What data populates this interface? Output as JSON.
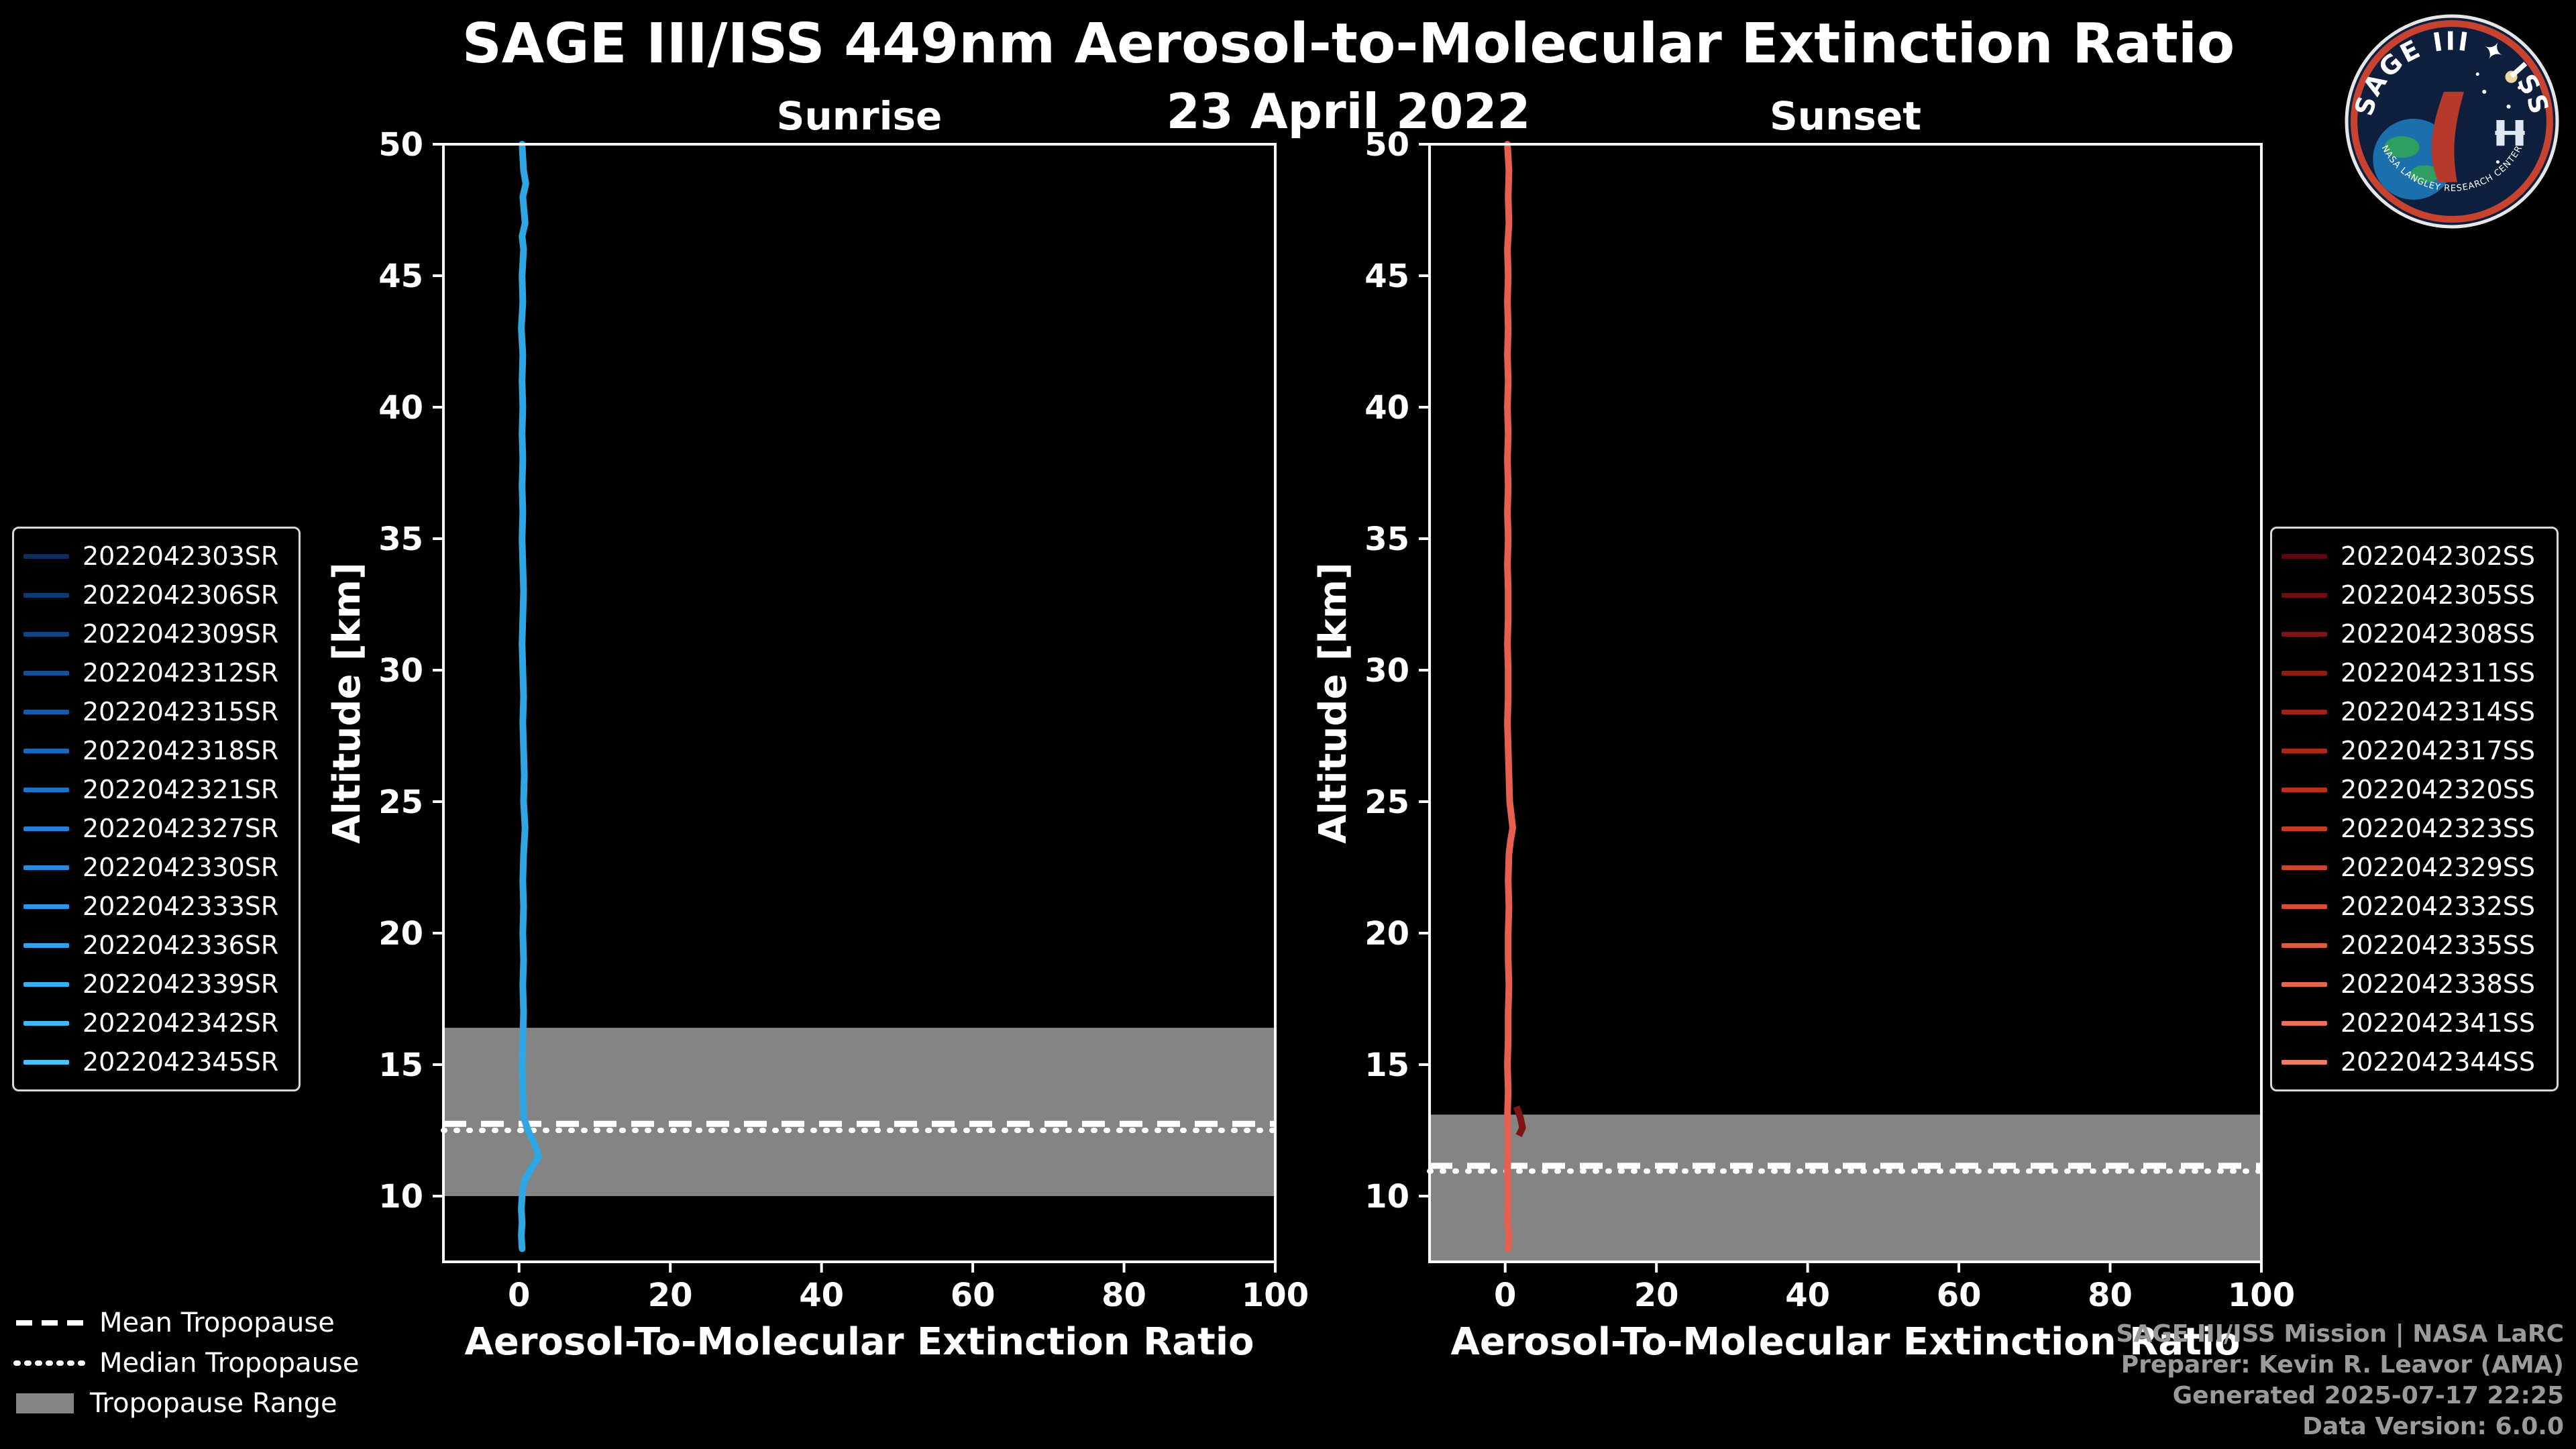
{
  "title": "SAGE III/ISS 449nm Aerosol-to-Molecular Extinction Ratio",
  "date": "23 April 2022",
  "logo": {
    "arc_text": "SAGE III ✦ ISS",
    "ring_text": "NASA LANGLEY RESEARCH CENTER"
  },
  "tropopause_legend": {
    "mean": "Mean Tropopause",
    "median": "Median Tropopause",
    "range": "Tropopause Range"
  },
  "footer": {
    "lines": [
      "SAGE III/ISS Mission | NASA LaRC",
      "Preparer: Kevin R. Leavor (AMA)",
      "Generated 2025-07-17 22:25",
      "Data Version: 6.0.0"
    ]
  },
  "legends": [
    {
      "name": "sunrise-legend",
      "items": [
        {
          "label": "2022042303SR",
          "color": "#0b3060"
        },
        {
          "label": "2022042306SR",
          "color": "#0e3a72"
        },
        {
          "label": "2022042309SR",
          "color": "#114584"
        },
        {
          "label": "2022042312SR",
          "color": "#145096"
        },
        {
          "label": "2022042315SR",
          "color": "#175ba8"
        },
        {
          "label": "2022042318SR",
          "color": "#1a66ba"
        },
        {
          "label": "2022042321SR",
          "color": "#1e72c9"
        },
        {
          "label": "2022042327SR",
          "color": "#227ed6"
        },
        {
          "label": "2022042330SR",
          "color": "#278ae0"
        },
        {
          "label": "2022042333SR",
          "color": "#2c96e8"
        },
        {
          "label": "2022042336SR",
          "color": "#32a1ee"
        },
        {
          "label": "2022042339SR",
          "color": "#39adf4"
        },
        {
          "label": "2022042342SR",
          "color": "#41b8f8"
        },
        {
          "label": "2022042345SR",
          "color": "#4ac3fc"
        }
      ]
    },
    {
      "name": "sunset-legend",
      "items": [
        {
          "label": "2022042302SS",
          "color": "#5f0710"
        },
        {
          "label": "2022042305SS",
          "color": "#6e0e12"
        },
        {
          "label": "2022042308SS",
          "color": "#7d1514"
        },
        {
          "label": "2022042311SS",
          "color": "#8c1c16"
        },
        {
          "label": "2022042314SS",
          "color": "#9b2318"
        },
        {
          "label": "2022042317SS",
          "color": "#aa2a1a"
        },
        {
          "label": "2022042320SS",
          "color": "#b9311d"
        },
        {
          "label": "2022042323SS",
          "color": "#c43a24"
        },
        {
          "label": "2022042329SS",
          "color": "#cc452f"
        },
        {
          "label": "2022042332SS",
          "color": "#d4503a"
        },
        {
          "label": "2022042335SS",
          "color": "#dc5b45"
        },
        {
          "label": "2022042338SS",
          "color": "#e36650"
        },
        {
          "label": "2022042341SS",
          "color": "#ea715b"
        },
        {
          "label": "2022042344SS",
          "color": "#f07c66"
        }
      ]
    }
  ],
  "chart_data": [
    {
      "type": "line",
      "title": "Sunrise",
      "xlabel": "Aerosol-To-Molecular Extinction Ratio",
      "ylabel": "Altitude [km]",
      "xlim": [
        -10,
        100
      ],
      "ylim": [
        7.5,
        50
      ],
      "xticks": [
        0,
        20,
        40,
        60,
        80,
        100
      ],
      "yticks": [
        10,
        15,
        20,
        25,
        30,
        35,
        40,
        45,
        50
      ],
      "grid": false,
      "legend_position": "outside-left",
      "line_color": "#2fa7e4",
      "band_color": "#848484",
      "mean_tropopause_km": 12.75,
      "median_tropopause_km": 12.5,
      "tropopause_range_km": [
        10.0,
        16.4
      ],
      "series_names": [
        "2022042303SR",
        "2022042306SR",
        "2022042309SR",
        "2022042312SR",
        "2022042315SR",
        "2022042318SR",
        "2022042321SR",
        "2022042327SR",
        "2022042330SR",
        "2022042333SR",
        "2022042336SR",
        "2022042339SR",
        "2022042342SR",
        "2022042345SR"
      ],
      "profile": {
        "altitude_km": [
          50,
          49,
          48.5,
          48,
          47,
          46.5,
          46,
          45,
          44,
          43,
          42,
          41,
          40,
          39,
          38,
          37,
          36,
          35,
          34,
          33,
          32,
          31,
          30,
          29,
          28,
          27,
          26,
          25,
          24,
          23,
          22,
          21,
          20,
          19,
          18,
          17,
          16,
          15,
          14,
          13,
          12.5,
          12,
          11.5,
          11,
          10.5,
          10,
          9.5,
          9,
          8.5,
          8
        ],
        "ratio": [
          0.4,
          0.6,
          0.9,
          0.5,
          0.8,
          0.4,
          0.6,
          0.4,
          0.5,
          0.3,
          0.5,
          0.4,
          0.5,
          0.4,
          0.5,
          0.4,
          0.5,
          0.4,
          0.5,
          0.6,
          0.5,
          0.4,
          0.5,
          0.6,
          0.5,
          0.6,
          0.7,
          0.6,
          0.8,
          0.6,
          0.5,
          0.6,
          0.5,
          0.6,
          0.5,
          0.6,
          0.5,
          0.4,
          0.5,
          0.6,
          1.2,
          2.0,
          2.6,
          1.5,
          0.6,
          0.4,
          0.3,
          0.4,
          0.3,
          0.4
        ]
      }
    },
    {
      "type": "line",
      "title": "Sunset",
      "xlabel": "Aerosol-To-Molecular Extinction Ratio",
      "ylabel": "Altitude [km]",
      "xlim": [
        -10,
        100
      ],
      "ylim": [
        7.5,
        50
      ],
      "xticks": [
        0,
        20,
        40,
        60,
        80,
        100
      ],
      "yticks": [
        10,
        15,
        20,
        25,
        30,
        35,
        40,
        45,
        50
      ],
      "grid": false,
      "legend_position": "outside-right",
      "line_color": "#e6604d",
      "band_color": "#848484",
      "mean_tropopause_km": 11.15,
      "median_tropopause_km": 10.95,
      "tropopause_range_km": [
        7.5,
        13.1
      ],
      "series_names": [
        "2022042302SS",
        "2022042305SS",
        "2022042308SS",
        "2022042311SS",
        "2022042314SS",
        "2022042317SS",
        "2022042320SS",
        "2022042323SS",
        "2022042329SS",
        "2022042332SS",
        "2022042335SS",
        "2022042338SS",
        "2022042341SS",
        "2022042344SS"
      ],
      "profile": {
        "altitude_km": [
          50,
          49,
          48,
          47,
          46,
          45,
          44,
          43,
          42,
          41,
          40,
          39,
          38,
          37,
          36,
          35,
          34,
          33,
          32,
          31,
          30,
          29,
          28,
          27,
          26,
          25,
          24,
          23.5,
          23,
          22,
          21,
          20,
          19,
          18,
          17,
          16,
          15,
          14,
          13,
          12,
          11,
          10,
          9,
          8.5,
          8
        ],
        "ratio": [
          0.3,
          0.5,
          0.4,
          0.5,
          0.3,
          0.4,
          0.3,
          0.4,
          0.3,
          0.4,
          0.3,
          0.4,
          0.3,
          0.4,
          0.3,
          0.4,
          0.3,
          0.4,
          0.4,
          0.3,
          0.4,
          0.4,
          0.3,
          0.4,
          0.5,
          0.6,
          1.0,
          0.7,
          0.5,
          0.4,
          0.5,
          0.4,
          0.4,
          0.5,
          0.4,
          0.4,
          0.3,
          0.4,
          0.3,
          0.4,
          0.3,
          0.4,
          0.3,
          0.5,
          0.4
        ]
      },
      "secondary_profile": {
        "color": "#7d1514",
        "altitude_km": [
          13.4,
          13.0,
          12.6,
          12.3
        ],
        "ratio": [
          1.5,
          2.0,
          2.3,
          1.8
        ]
      }
    }
  ]
}
